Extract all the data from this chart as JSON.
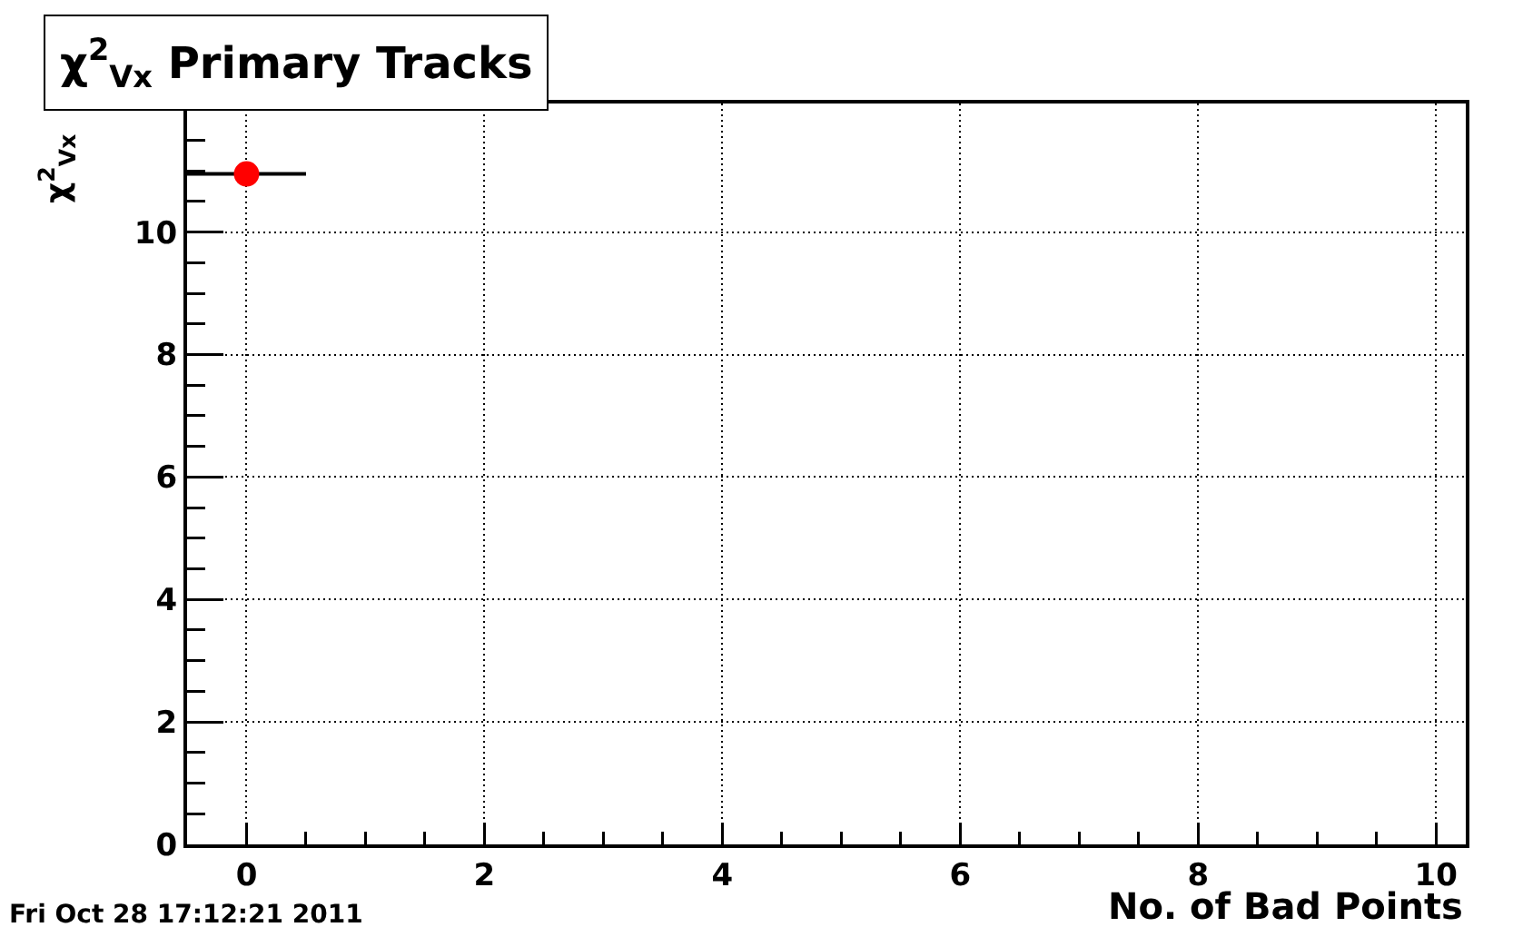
{
  "chart_data": {
    "type": "scatter",
    "title": "χ$^{2}$$_{Vx}$ Primary Tracks",
    "xlabel": "No. of Bad Points",
    "ylabel": "χ$^{2}$$_{Vx}$",
    "annotations": [
      "Fri Oct 28 17:12:21 2011"
    ],
    "x": [
      0
    ],
    "values": [
      10.95
    ],
    "xerrors": [
      0.5
    ],
    "color": "#ff0000",
    "xlim": [
      -0.5,
      10.25
    ],
    "ylim": [
      0,
      12.1
    ],
    "xticks": [
      0,
      2,
      4,
      6,
      8,
      10
    ],
    "yticks": [
      0,
      2,
      4,
      6,
      8,
      10
    ],
    "grid": true,
    "marker": "circle"
  }
}
